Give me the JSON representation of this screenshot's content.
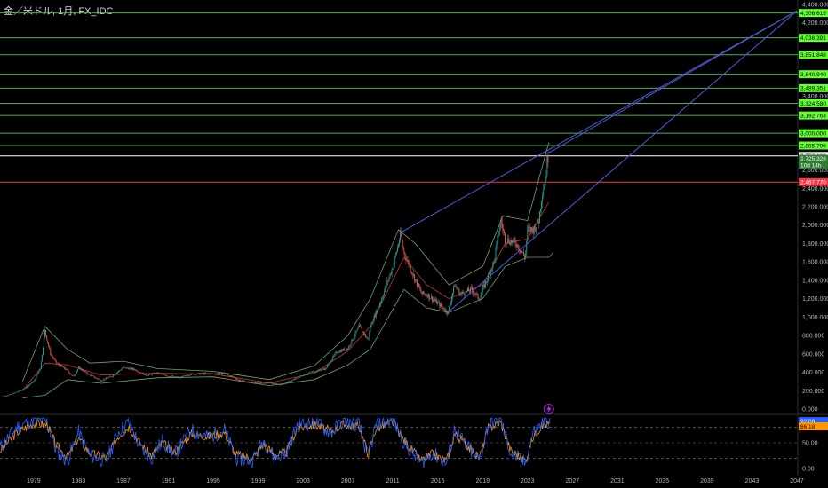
{
  "header": {
    "title": "金／米ドル, 1月, FX_IDC"
  },
  "colors": {
    "background": "#000000",
    "level_line": "#4caf50",
    "level_tag": "#66ff33",
    "support_line": "#f23645",
    "trend_line": "#4d5bd6",
    "candle_up": "#26a69a",
    "candle_down": "#ef5350",
    "bb_band": "#66aa66",
    "bb_basis": "#c0392b",
    "osc_k": "#2962ff",
    "osc_d": "#ff9800"
  },
  "chart_data": [
    {
      "type": "candlestick",
      "title": "金／米ドル, 1月, FX_IDC",
      "ylim": [
        0,
        4400
      ],
      "xlim": [
        1976,
        2047
      ],
      "y_ticks": [
        0,
        200,
        400,
        600,
        800,
        1000,
        1200,
        1400,
        1600,
        1800,
        2000,
        2200,
        2400,
        2600,
        3400,
        4200,
        4400
      ],
      "y_tick_labels": [
        "0.000",
        "200.000",
        "400.000",
        "600.000",
        "800.000",
        "1,000.000",
        "1,200.000",
        "1,400.000",
        "1,600.000",
        "1,800.000",
        "2,000.000",
        "2,200.000",
        "2,400.000",
        "2,600.000",
        "3,400.000",
        "4,200.000",
        "4,400.000"
      ],
      "x_ticks": [
        1979,
        1983,
        1987,
        1991,
        1995,
        1999,
        2003,
        2007,
        2011,
        2015,
        2019,
        2023,
        2027,
        2031,
        2035,
        2039,
        2043,
        2047
      ],
      "price_path": [
        [
          1976.0,
          130
        ],
        [
          1977.0,
          160
        ],
        [
          1978.0,
          210
        ],
        [
          1979.0,
          300
        ],
        [
          1979.6,
          450
        ],
        [
          1980.0,
          850
        ],
        [
          1980.5,
          600
        ],
        [
          1981.0,
          500
        ],
        [
          1982.0,
          420
        ],
        [
          1982.5,
          350
        ],
        [
          1983.0,
          450
        ],
        [
          1984.0,
          370
        ],
        [
          1985.0,
          310
        ],
        [
          1986.0,
          360
        ],
        [
          1987.0,
          450
        ],
        [
          1988.0,
          430
        ],
        [
          1989.0,
          370
        ],
        [
          1990.0,
          390
        ],
        [
          1991.0,
          360
        ],
        [
          1992.0,
          340
        ],
        [
          1993.0,
          380
        ],
        [
          1994.0,
          385
        ],
        [
          1995.0,
          385
        ],
        [
          1996.0,
          390
        ],
        [
          1997.0,
          330
        ],
        [
          1998.0,
          295
        ],
        [
          1999.0,
          280
        ],
        [
          2000.0,
          285
        ],
        [
          2001.0,
          265
        ],
        [
          2002.0,
          310
        ],
        [
          2003.0,
          370
        ],
        [
          2004.0,
          410
        ],
        [
          2005.0,
          440
        ],
        [
          2006.0,
          620
        ],
        [
          2007.0,
          660
        ],
        [
          2008.0,
          900
        ],
        [
          2008.8,
          750
        ],
        [
          2009.0,
          900
        ],
        [
          2010.0,
          1200
        ],
        [
          2011.0,
          1550
        ],
        [
          2011.7,
          1900
        ],
        [
          2012.0,
          1700
        ],
        [
          2013.0,
          1400
        ],
        [
          2013.6,
          1250
        ],
        [
          2014.0,
          1250
        ],
        [
          2015.0,
          1150
        ],
        [
          2015.9,
          1050
        ],
        [
          2016.5,
          1350
        ],
        [
          2017.0,
          1250
        ],
        [
          2018.0,
          1300
        ],
        [
          2018.7,
          1200
        ],
        [
          2019.0,
          1300
        ],
        [
          2019.7,
          1500
        ],
        [
          2020.0,
          1600
        ],
        [
          2020.6,
          2050
        ],
        [
          2021.0,
          1850
        ],
        [
          2022.0,
          1800
        ],
        [
          2022.8,
          1650
        ],
        [
          2023.0,
          1950
        ],
        [
          2023.5,
          1950
        ],
        [
          2024.0,
          2050
        ],
        [
          2024.3,
          2350
        ],
        [
          2024.6,
          2500
        ],
        [
          2024.8,
          2750
        ],
        [
          2024.9,
          2725
        ]
      ],
      "bb_upper": [
        [
          1978.0,
          300
        ],
        [
          1980.0,
          900
        ],
        [
          1982.0,
          650
        ],
        [
          1984.0,
          500
        ],
        [
          1987.0,
          520
        ],
        [
          1990.0,
          440
        ],
        [
          1995.0,
          410
        ],
        [
          2000.0,
          320
        ],
        [
          2004.0,
          470
        ],
        [
          2007.0,
          800
        ],
        [
          2009.0,
          1200
        ],
        [
          2011.5,
          1950
        ],
        [
          2013.0,
          1800
        ],
        [
          2016.0,
          1350
        ],
        [
          2019.0,
          1550
        ],
        [
          2020.8,
          2100
        ],
        [
          2023.0,
          2050
        ],
        [
          2024.9,
          2900
        ]
      ],
      "bb_basis": [
        [
          1978.0,
          200
        ],
        [
          1980.0,
          500
        ],
        [
          1982.0,
          480
        ],
        [
          1985.0,
          370
        ],
        [
          1990.0,
          390
        ],
        [
          1995.0,
          380
        ],
        [
          2000.0,
          285
        ],
        [
          2004.0,
          390
        ],
        [
          2007.0,
          630
        ],
        [
          2009.0,
          900
        ],
        [
          2012.0,
          1650
        ],
        [
          2014.0,
          1350
        ],
        [
          2016.0,
          1200
        ],
        [
          2019.0,
          1350
        ],
        [
          2021.0,
          1800
        ],
        [
          2023.0,
          1850
        ],
        [
          2024.9,
          2250
        ]
      ],
      "bb_lower": [
        [
          1978.0,
          120
        ],
        [
          1980.0,
          150
        ],
        [
          1982.0,
          320
        ],
        [
          1985.0,
          280
        ],
        [
          1990.0,
          340
        ],
        [
          1995.0,
          350
        ],
        [
          2000.0,
          255
        ],
        [
          2004.0,
          320
        ],
        [
          2007.0,
          480
        ],
        [
          2009.0,
          650
        ],
        [
          2012.0,
          1300
        ],
        [
          2014.0,
          1100
        ],
        [
          2016.0,
          1050
        ],
        [
          2019.0,
          1200
        ],
        [
          2021.0,
          1550
        ],
        [
          2023.0,
          1650
        ],
        [
          2024.9,
          1650
        ],
        [
          2025.3,
          1700
        ]
      ],
      "trend_lines": [
        [
          [
            2011.7,
            1920
          ],
          [
            2047.0,
            4330
          ]
        ],
        [
          [
            2015.9,
            1050
          ],
          [
            2047.0,
            4330
          ]
        ],
        [
          [
            2024.8,
            2780
          ],
          [
            2047.0,
            4330
          ]
        ]
      ],
      "support_level": {
        "value": 2467.77,
        "label": "2,467.770"
      },
      "current_price": {
        "value": 2725.328,
        "label": "2,725.328",
        "countdown": "10d 14h"
      },
      "white_level": {
        "value": 2752.133,
        "label": "2,752.133"
      },
      "levels": [
        {
          "value": 4306.615,
          "label": "4,306.615"
        },
        {
          "value": 4036.391,
          "label": "4,036.391"
        },
        {
          "value": 3851.848,
          "label": "3,851.848"
        },
        {
          "value": 3640.94,
          "label": "3,640.940"
        },
        {
          "value": 3489.351,
          "label": "3,489.351"
        },
        {
          "value": 3324.58,
          "label": "3,324.580"
        },
        {
          "value": 3192.763,
          "label": "3,192.763"
        },
        {
          "value": 3000.0,
          "label": "3,000.000"
        },
        {
          "value": 2865.799,
          "label": "2,865.799"
        }
      ]
    },
    {
      "type": "line",
      "ylim": [
        0,
        100
      ],
      "y_ticks": [
        0,
        50
      ],
      "y_tick_labels": [
        "0.00",
        "50.00"
      ],
      "guide_levels": [
        20,
        50,
        80
      ],
      "series": [
        {
          "values_label": "92.08"
        },
        {
          "values_label": "86.18"
        }
      ],
      "k_path": [
        [
          1976.0,
          40
        ],
        [
          1977.5,
          80
        ],
        [
          1979.0,
          95
        ],
        [
          1980.2,
          90
        ],
        [
          1981.0,
          35
        ],
        [
          1982.0,
          15
        ],
        [
          1983.0,
          70
        ],
        [
          1984.0,
          25
        ],
        [
          1985.5,
          15
        ],
        [
          1986.5,
          70
        ],
        [
          1987.5,
          90
        ],
        [
          1988.5,
          40
        ],
        [
          1989.5,
          20
        ],
        [
          1990.5,
          55
        ],
        [
          1991.5,
          25
        ],
        [
          1993.0,
          75
        ],
        [
          1994.5,
          60
        ],
        [
          1996.0,
          75
        ],
        [
          1997.0,
          20
        ],
        [
          1998.5,
          15
        ],
        [
          1999.5,
          55
        ],
        [
          2000.5,
          20
        ],
        [
          2001.5,
          30
        ],
        [
          2002.5,
          85
        ],
        [
          2004.0,
          90
        ],
        [
          2005.5,
          70
        ],
        [
          2006.5,
          90
        ],
        [
          2008.0,
          85
        ],
        [
          2008.8,
          20
        ],
        [
          2009.5,
          85
        ],
        [
          2011.0,
          95
        ],
        [
          2012.0,
          50
        ],
        [
          2013.5,
          10
        ],
        [
          2014.5,
          30
        ],
        [
          2015.8,
          10
        ],
        [
          2016.5,
          75
        ],
        [
          2017.5,
          45
        ],
        [
          2018.7,
          15
        ],
        [
          2019.5,
          85
        ],
        [
          2020.6,
          95
        ],
        [
          2021.5,
          30
        ],
        [
          2022.8,
          10
        ],
        [
          2023.5,
          70
        ],
        [
          2024.0,
          80
        ],
        [
          2024.5,
          92
        ],
        [
          2025.0,
          92
        ]
      ],
      "d_path": [
        [
          1976.0,
          35
        ],
        [
          1977.5,
          70
        ],
        [
          1979.0,
          88
        ],
        [
          1980.2,
          85
        ],
        [
          1981.0,
          45
        ],
        [
          1982.0,
          22
        ],
        [
          1983.0,
          60
        ],
        [
          1984.0,
          30
        ],
        [
          1985.5,
          20
        ],
        [
          1986.5,
          62
        ],
        [
          1987.5,
          82
        ],
        [
          1988.5,
          48
        ],
        [
          1989.5,
          25
        ],
        [
          1990.5,
          50
        ],
        [
          1991.5,
          30
        ],
        [
          1993.0,
          68
        ],
        [
          1994.5,
          62
        ],
        [
          1996.0,
          70
        ],
        [
          1997.0,
          28
        ],
        [
          1998.5,
          20
        ],
        [
          1999.5,
          48
        ],
        [
          2000.5,
          25
        ],
        [
          2001.5,
          32
        ],
        [
          2002.5,
          78
        ],
        [
          2004.0,
          85
        ],
        [
          2005.5,
          72
        ],
        [
          2006.5,
          85
        ],
        [
          2008.0,
          82
        ],
        [
          2008.8,
          28
        ],
        [
          2009.5,
          78
        ],
        [
          2011.0,
          90
        ],
        [
          2012.0,
          55
        ],
        [
          2013.5,
          15
        ],
        [
          2014.5,
          28
        ],
        [
          2015.8,
          15
        ],
        [
          2016.5,
          68
        ],
        [
          2017.5,
          48
        ],
        [
          2018.7,
          20
        ],
        [
          2019.5,
          78
        ],
        [
          2020.6,
          90
        ],
        [
          2021.5,
          35
        ],
        [
          2022.8,
          15
        ],
        [
          2023.5,
          62
        ],
        [
          2024.0,
          76
        ],
        [
          2024.5,
          86
        ],
        [
          2025.0,
          86
        ]
      ]
    }
  ]
}
